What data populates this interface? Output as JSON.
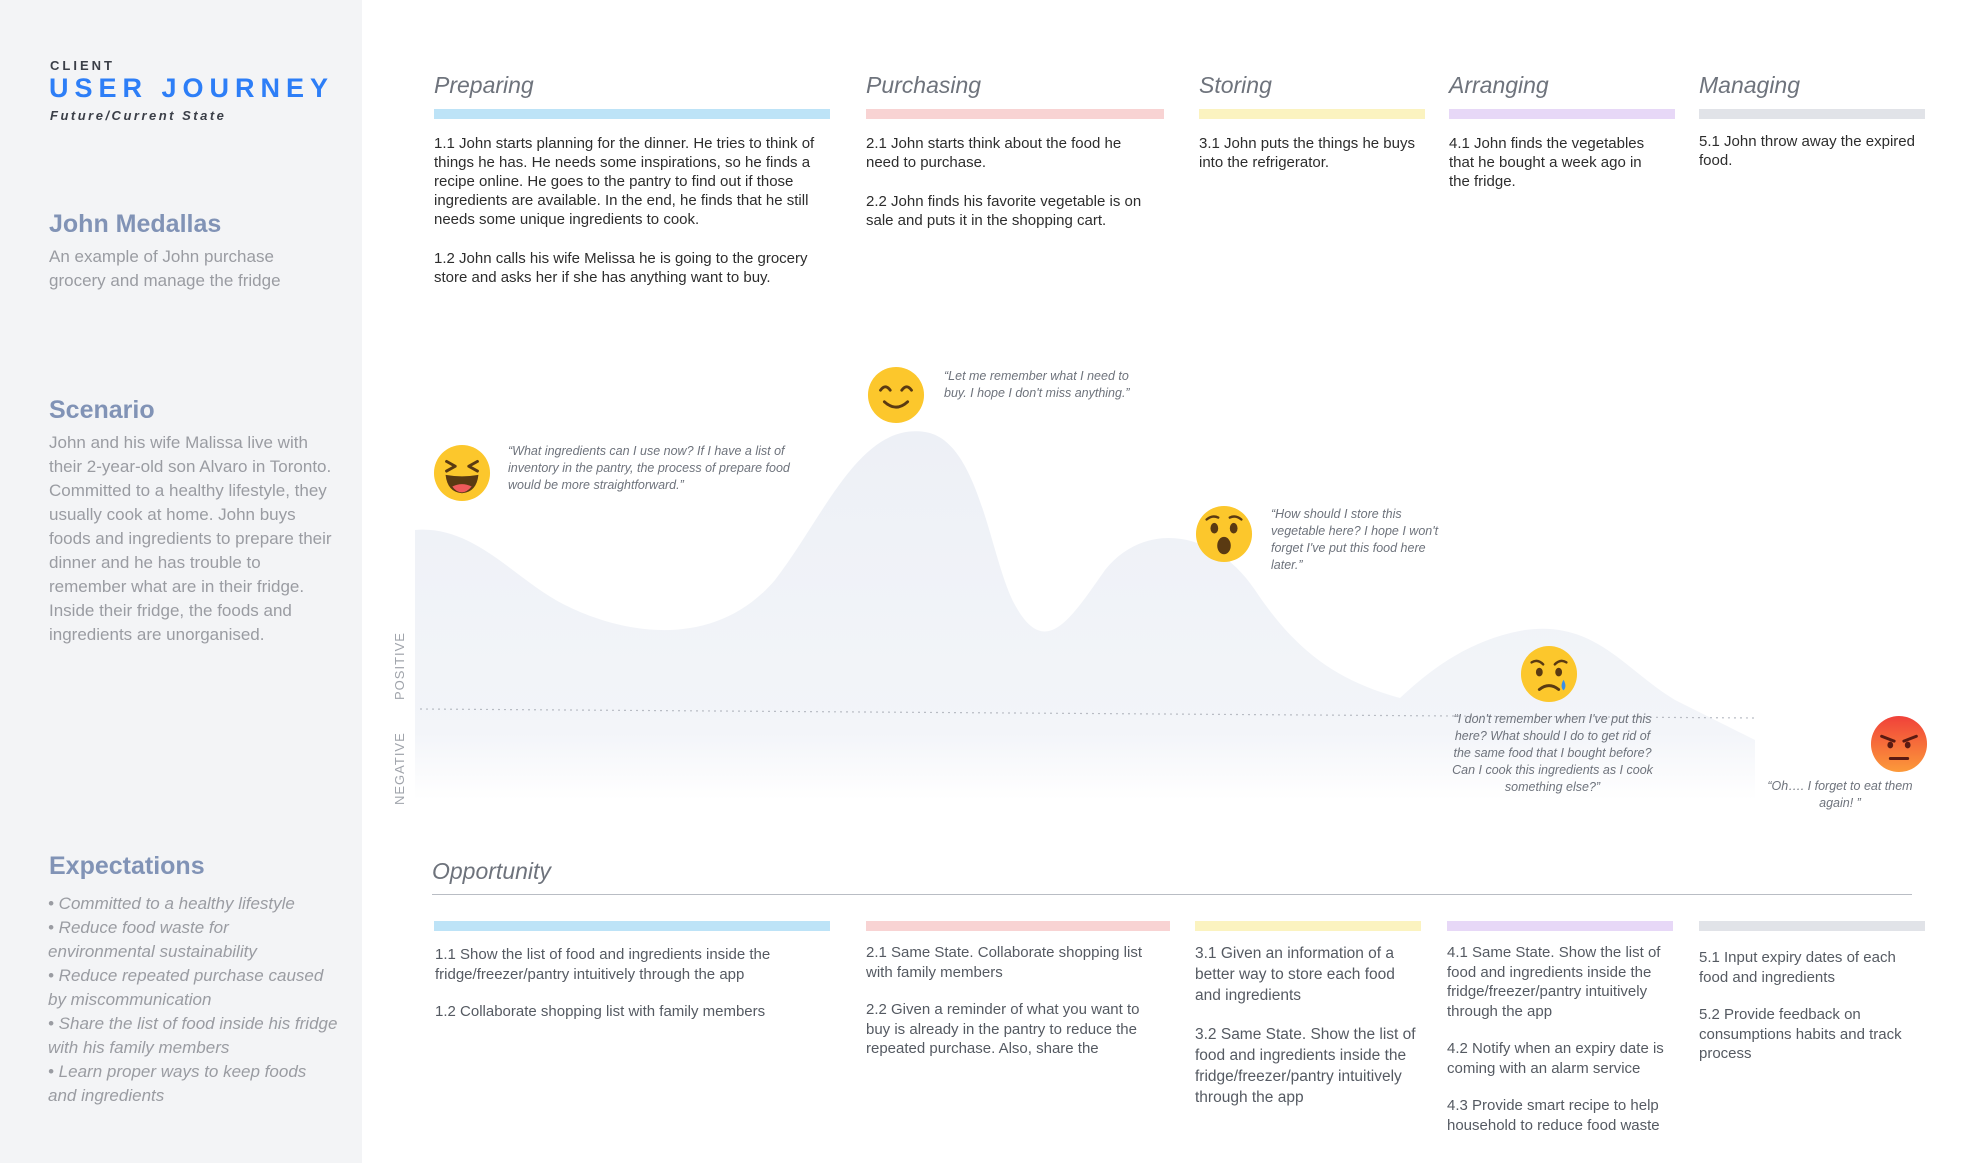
{
  "sidebar": {
    "client": "CLIENT",
    "title": "USER JOURNEY",
    "state": "Future/Current State",
    "persona_name": "John Medallas",
    "persona_desc": "An example of John purchase grocery and manage the fridge",
    "scenario_heading": "Scenario",
    "scenario_text": "John and his wife Malissa live with their 2-year-old son Alvaro in Toronto. Committed to a healthy lifestyle, they usually cook at home. John buys foods and ingredients to prepare their dinner and he has trouble to remember what are in their fridge. Inside their fridge, the foods and ingredients are unorganised.",
    "expectations_heading": "Expectations",
    "expectations": [
      "• Committed  to a healthy lifestyle",
      "• Reduce food waste for environmental sustainability",
      "• Reduce repeated purchase caused by miscommunication",
      "• Share the list of food inside his fridge with his family members",
      "• Learn proper ways to keep foods and ingredients"
    ]
  },
  "colors": {
    "preparing": "#bde3f7",
    "purchasing": "#f8d3d3",
    "storing": "#fbf3c0",
    "arranging": "#e7d8f7",
    "managing": "#e1e3e8",
    "accent": "#2d7ef7",
    "curve": "#eef1f7"
  },
  "stages": [
    {
      "title": "Preparing",
      "steps": [
        "1.1 John starts planning for the dinner. He tries to think of things he has. He needs some inspirations, so he finds a recipe online. He goes to the pantry to find out if those ingredients are available. In the end, he finds that he still needs some unique ingredients to cook.",
        "1.2 John calls his wife Melissa he is going to the grocery store and asks her if she has anything want to buy."
      ]
    },
    {
      "title": "Purchasing",
      "steps": [
        "2.1 John starts think about the food he need to purchase.",
        "2.2 John finds his favorite vegetable is on sale and puts it in the shopping cart."
      ]
    },
    {
      "title": "Storing",
      "steps": [
        "3.1 John puts the things he buys into the refrigerator."
      ]
    },
    {
      "title": "Arranging",
      "steps": [
        "4.1 John finds the vegetables that he bought a week ago in the fridge."
      ]
    },
    {
      "title": "Managing",
      "steps": [
        "5.1 John throw away the expired food."
      ]
    }
  ],
  "axis": {
    "positive": "POSITIVE",
    "negative": "NEGATIVE"
  },
  "emotions": [
    {
      "emoji": "laughing-face",
      "quote": "“What ingredients can I use now?  If I have a list of inventory in the pantry, the process of prepare food would be more straightforward.”"
    },
    {
      "emoji": "smiling-face",
      "quote": "“Let me remember what I need to buy. I hope I don't miss anything.”"
    },
    {
      "emoji": "surprised-face",
      "quote": "“How should I store this vegetable here? I hope I won't forget I've put this food here later.”"
    },
    {
      "emoji": "sad-face",
      "quote": "“I don't remember when I've put this here? What should I do to get rid of the same food that I bought before? Can I cook this ingredients as I cook something else?”"
    },
    {
      "emoji": "angry-face",
      "quote": "“Oh…. I forget to eat them again! ”"
    }
  ],
  "opportunity": {
    "title": "Opportunity",
    "columns": [
      [
        "1.1 Show the list of food and ingredients inside the fridge/freezer/pantry intuitively through the app",
        "1.2 Collaborate shopping list with family members"
      ],
      [
        "2.1  Same State. Collaborate shopping list with family members",
        "2.2  Given a reminder of what you want to buy is already in the pantry to reduce the repeated purchase. Also, share the"
      ],
      [
        "3.1 Given an information of a better way to store each food and ingredients",
        "3.2 Same State. Show the list of food and ingredients inside the fridge/freezer/pantry intuitively through the app"
      ],
      [
        "4.1 Same State. Show the list of food and ingredients inside the fridge/freezer/pantry intuitively through the app",
        "4.2 Notify when an expiry date is coming with an alarm service",
        "4.3 Provide smart recipe to help household to reduce food waste"
      ],
      [
        "5.1 Input expiry dates of each food and ingredients",
        "5.2 Provide feedback on consumptions habits and track process"
      ]
    ]
  }
}
